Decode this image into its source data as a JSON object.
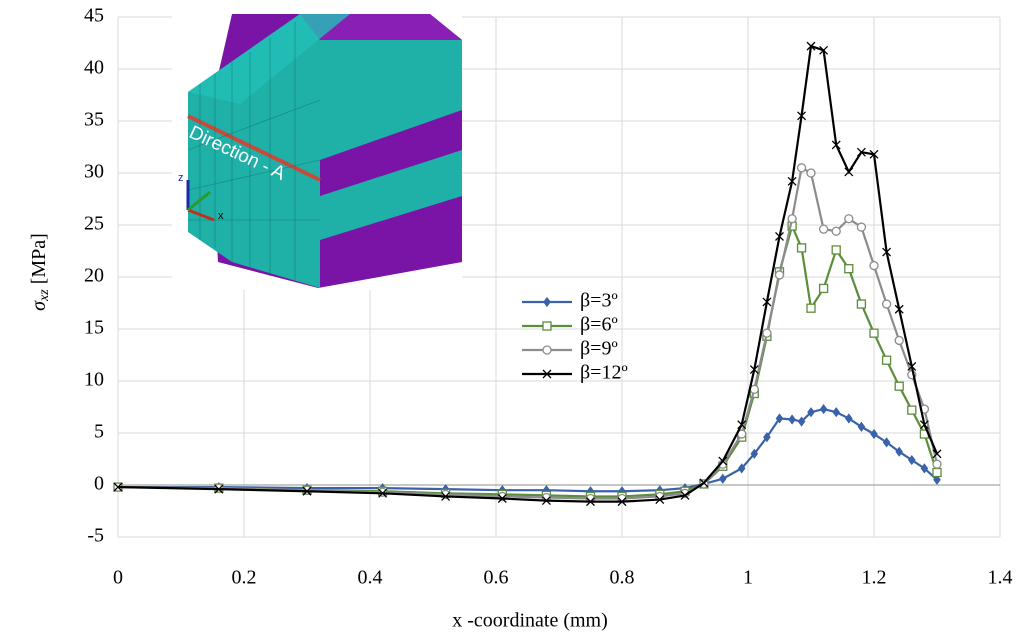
{
  "chart_data": {
    "type": "line",
    "x_label": "x -coordinate (mm)",
    "y_label": {
      "symbol": "σ",
      "subscript": "xz",
      "unit": "[MPa]"
    },
    "annotations": {
      "direction": "Direction - A",
      "axis_z": "z",
      "axis_x": "x"
    },
    "x": [
      0,
      0.16,
      0.3,
      0.42,
      0.52,
      0.61,
      0.68,
      0.75,
      0.8,
      0.86,
      0.9,
      0.93,
      0.96,
      0.99,
      1.01,
      1.03,
      1.05,
      1.07,
      1.085,
      1.1,
      1.12,
      1.14,
      1.16,
      1.18,
      1.2,
      1.22,
      1.24,
      1.26,
      1.28,
      1.3
    ],
    "series": [
      {
        "name": "β=3º",
        "color": "#3a62ab",
        "marker": "diamond",
        "values": [
          -0.2,
          -0.2,
          -0.3,
          -0.3,
          -0.4,
          -0.5,
          -0.5,
          -0.6,
          -0.6,
          -0.5,
          -0.3,
          0.1,
          0.6,
          1.6,
          3.0,
          4.6,
          6.4,
          6.3,
          6.1,
          7.0,
          7.3,
          7.0,
          6.4,
          5.6,
          4.9,
          4.1,
          3.2,
          2.4,
          1.6,
          0.5
        ]
      },
      {
        "name": "β=6º",
        "color": "#5b8d3a",
        "marker": "square",
        "values": [
          -0.2,
          -0.3,
          -0.5,
          -0.6,
          -0.8,
          -0.9,
          -1.0,
          -1.1,
          -1.1,
          -0.9,
          -0.6,
          0.1,
          1.8,
          4.6,
          8.8,
          14.3,
          20.5,
          24.9,
          22.8,
          17.0,
          18.9,
          22.6,
          20.8,
          17.4,
          14.6,
          12.0,
          9.5,
          7.2,
          4.9,
          1.2
        ]
      },
      {
        "name": "β=9º",
        "color": "#8c8c8c",
        "marker": "circle",
        "values": [
          -0.2,
          -0.3,
          -0.5,
          -0.7,
          -0.9,
          -1.1,
          -1.2,
          -1.3,
          -1.3,
          -1.1,
          -0.8,
          0.1,
          2.0,
          4.9,
          9.2,
          14.6,
          20.2,
          25.6,
          30.5,
          30.0,
          24.6,
          24.4,
          25.6,
          24.8,
          21.1,
          17.4,
          13.9,
          10.6,
          7.3,
          2.0
        ]
      },
      {
        "name": "β=12º",
        "color": "#000000",
        "marker": "cross",
        "values": [
          -0.2,
          -0.4,
          -0.6,
          -0.8,
          -1.1,
          -1.3,
          -1.5,
          -1.6,
          -1.6,
          -1.4,
          -1.0,
          0.2,
          2.3,
          5.8,
          11.1,
          17.6,
          23.9,
          29.2,
          35.5,
          42.2,
          41.8,
          32.7,
          30.1,
          32.0,
          31.8,
          22.4,
          16.9,
          11.4,
          5.8,
          3.0
        ]
      }
    ],
    "xlim": [
      0,
      1.4
    ],
    "xticks": [
      0,
      0.2,
      0.4,
      0.6,
      0.8,
      1,
      1.2,
      1.4
    ],
    "ylim": [
      -5,
      45
    ],
    "yticks": [
      -5,
      0,
      5,
      10,
      15,
      20,
      25,
      30,
      35,
      40,
      45
    ],
    "grid": true,
    "legend": "center"
  }
}
